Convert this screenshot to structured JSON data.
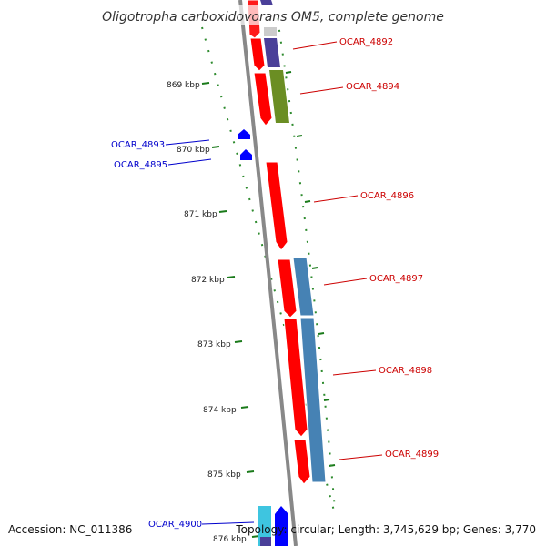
{
  "title": "Oligotropha carboxidovorans OM5, complete genome",
  "footer": {
    "accession": "Accession: NC_011386",
    "topology": "Topology: circular; Length: 3,745,629 bp; Genes: 3,770"
  },
  "ticks": [
    "869 kbp",
    "870 kbp",
    "871 kbp",
    "872 kbp",
    "873 kbp",
    "874 kbp",
    "875 kbp",
    "876 kbp"
  ],
  "colors": {
    "forward_gene": "#ff0000",
    "reverse_gene": "#0000ff",
    "backbone": "#888888",
    "tick": "#008000",
    "label_forward": "#cc0000",
    "label_reverse": "#0000cc"
  },
  "genes": [
    {
      "name": "OCAR_4892",
      "strand": "forward"
    },
    {
      "name": "OCAR_4894",
      "strand": "forward"
    },
    {
      "name": "OCAR_4893",
      "strand": "reverse"
    },
    {
      "name": "OCAR_4895",
      "strand": "reverse"
    },
    {
      "name": "OCAR_4896",
      "strand": "forward"
    },
    {
      "name": "OCAR_4897",
      "strand": "forward"
    },
    {
      "name": "OCAR_4898",
      "strand": "forward"
    },
    {
      "name": "OCAR_4899",
      "strand": "forward"
    },
    {
      "name": "OCAR_4900",
      "strand": "reverse"
    }
  ]
}
